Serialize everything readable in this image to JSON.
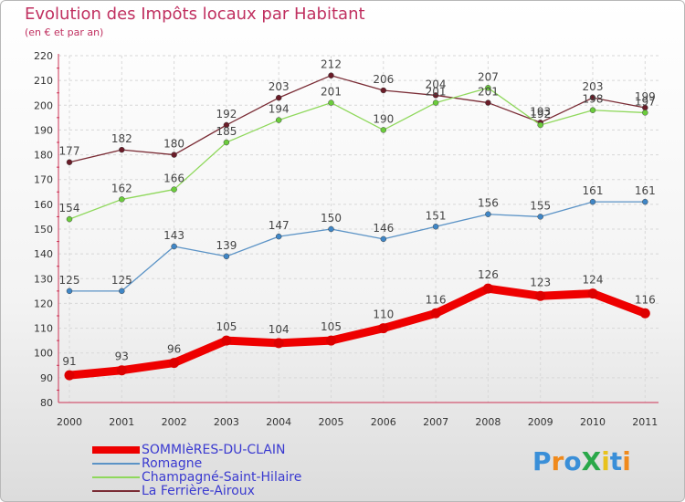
{
  "title": "Evolution des Impôts locaux par Habitant",
  "subtitle": "(en € et par an)",
  "logo": {
    "text": "ProXiti",
    "colors": [
      "#3a8fd8",
      "#f08a1c",
      "#3a8fd8",
      "#2aa84a",
      "#e8c21c",
      "#3a8fd8",
      "#f08a1c"
    ]
  },
  "chart_data": {
    "type": "line",
    "title": "Evolution des Impôts locaux par Habitant",
    "subtitle": "(en € et par an)",
    "xlabel": "",
    "ylabel": "",
    "ylim": [
      80,
      220
    ],
    "yticks": [
      80,
      90,
      100,
      110,
      120,
      130,
      140,
      150,
      160,
      170,
      180,
      190,
      200,
      210,
      220
    ],
    "grid": true,
    "legend_position": "bottom-left",
    "categories": [
      "2000",
      "2001",
      "2002",
      "2003",
      "2004",
      "2005",
      "2006",
      "2007",
      "2008",
      "2009",
      "2010",
      "2011"
    ],
    "series": [
      {
        "name": "SOMMIèRES-DU-CLAIN",
        "color": "#ee0000",
        "dot": "#dd0000",
        "width": 9,
        "values": [
          91,
          93,
          96,
          105,
          104,
          105,
          110,
          116,
          126,
          123,
          124,
          116
        ]
      },
      {
        "name": "Romagne",
        "color": "#5b93c6",
        "dot": "#3f86c6",
        "width": 1.3,
        "values": [
          125,
          125,
          143,
          139,
          147,
          150,
          146,
          151,
          156,
          155,
          161,
          161
        ]
      },
      {
        "name": "Champagné-Saint-Hilaire",
        "color": "#8fd85c",
        "dot": "#6bcc3c",
        "width": 1.3,
        "values": [
          154,
          162,
          166,
          185,
          194,
          201,
          190,
          201,
          207,
          192,
          198,
          197
        ]
      },
      {
        "name": "La Ferrière-Airoux",
        "color": "#7a2c35",
        "dot": "#6a1c28",
        "width": 1.3,
        "values": [
          177,
          182,
          180,
          192,
          203,
          212,
          206,
          204,
          201,
          193,
          203,
          199
        ]
      }
    ]
  }
}
